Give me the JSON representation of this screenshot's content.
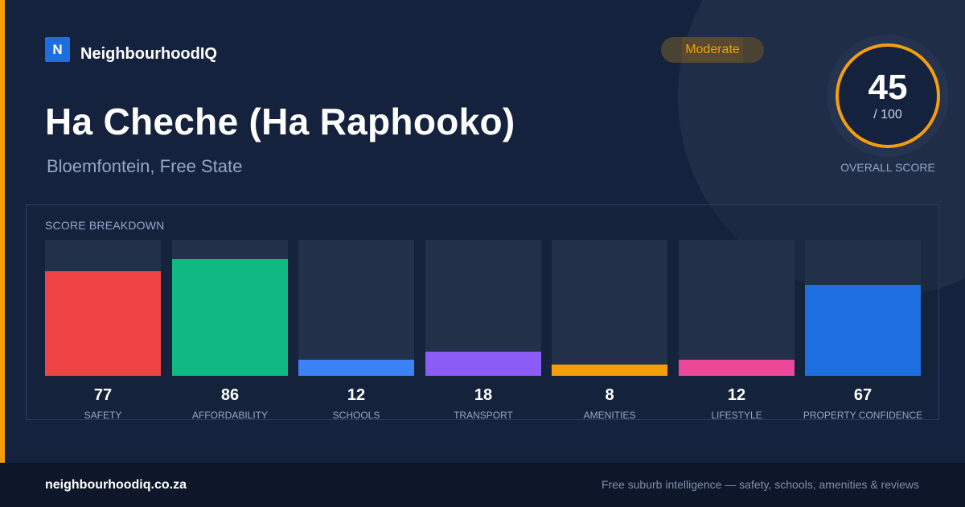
{
  "brand": {
    "logo_letter": "N",
    "name": "NeighbourhoodIQ",
    "color": "#1d6fe0"
  },
  "badge": {
    "label": "Moderate",
    "color": "#f59e0b"
  },
  "header": {
    "title": "Ha Cheche (Ha Raphooko)",
    "subtitle": "Bloemfontein, Free State"
  },
  "overall": {
    "score": "45",
    "max": "/ 100",
    "label": "OVERALL SCORE",
    "ring_color": "#f59e0b"
  },
  "breakdown": {
    "title": "SCORE BREAKDOWN",
    "scale_max": 100,
    "items": [
      {
        "label": "SAFETY",
        "value": 77,
        "color": "#ef4444"
      },
      {
        "label": "AFFORDABILITY",
        "value": 86,
        "color": "#10b981"
      },
      {
        "label": "SCHOOLS",
        "value": 12,
        "color": "#3b82f6"
      },
      {
        "label": "TRANSPORT",
        "value": 18,
        "color": "#8b5cf6"
      },
      {
        "label": "AMENITIES",
        "value": 8,
        "color": "#f59e0b"
      },
      {
        "label": "LIFESTYLE",
        "value": 12,
        "color": "#ec4899"
      },
      {
        "label": "PROPERTY CONFIDENCE",
        "value": 67,
        "color": "#1d6fe0"
      }
    ]
  },
  "footer": {
    "url": "neighbourhoodiq.co.za",
    "tagline": "Free suburb intelligence — safety, schools, amenities & reviews"
  }
}
